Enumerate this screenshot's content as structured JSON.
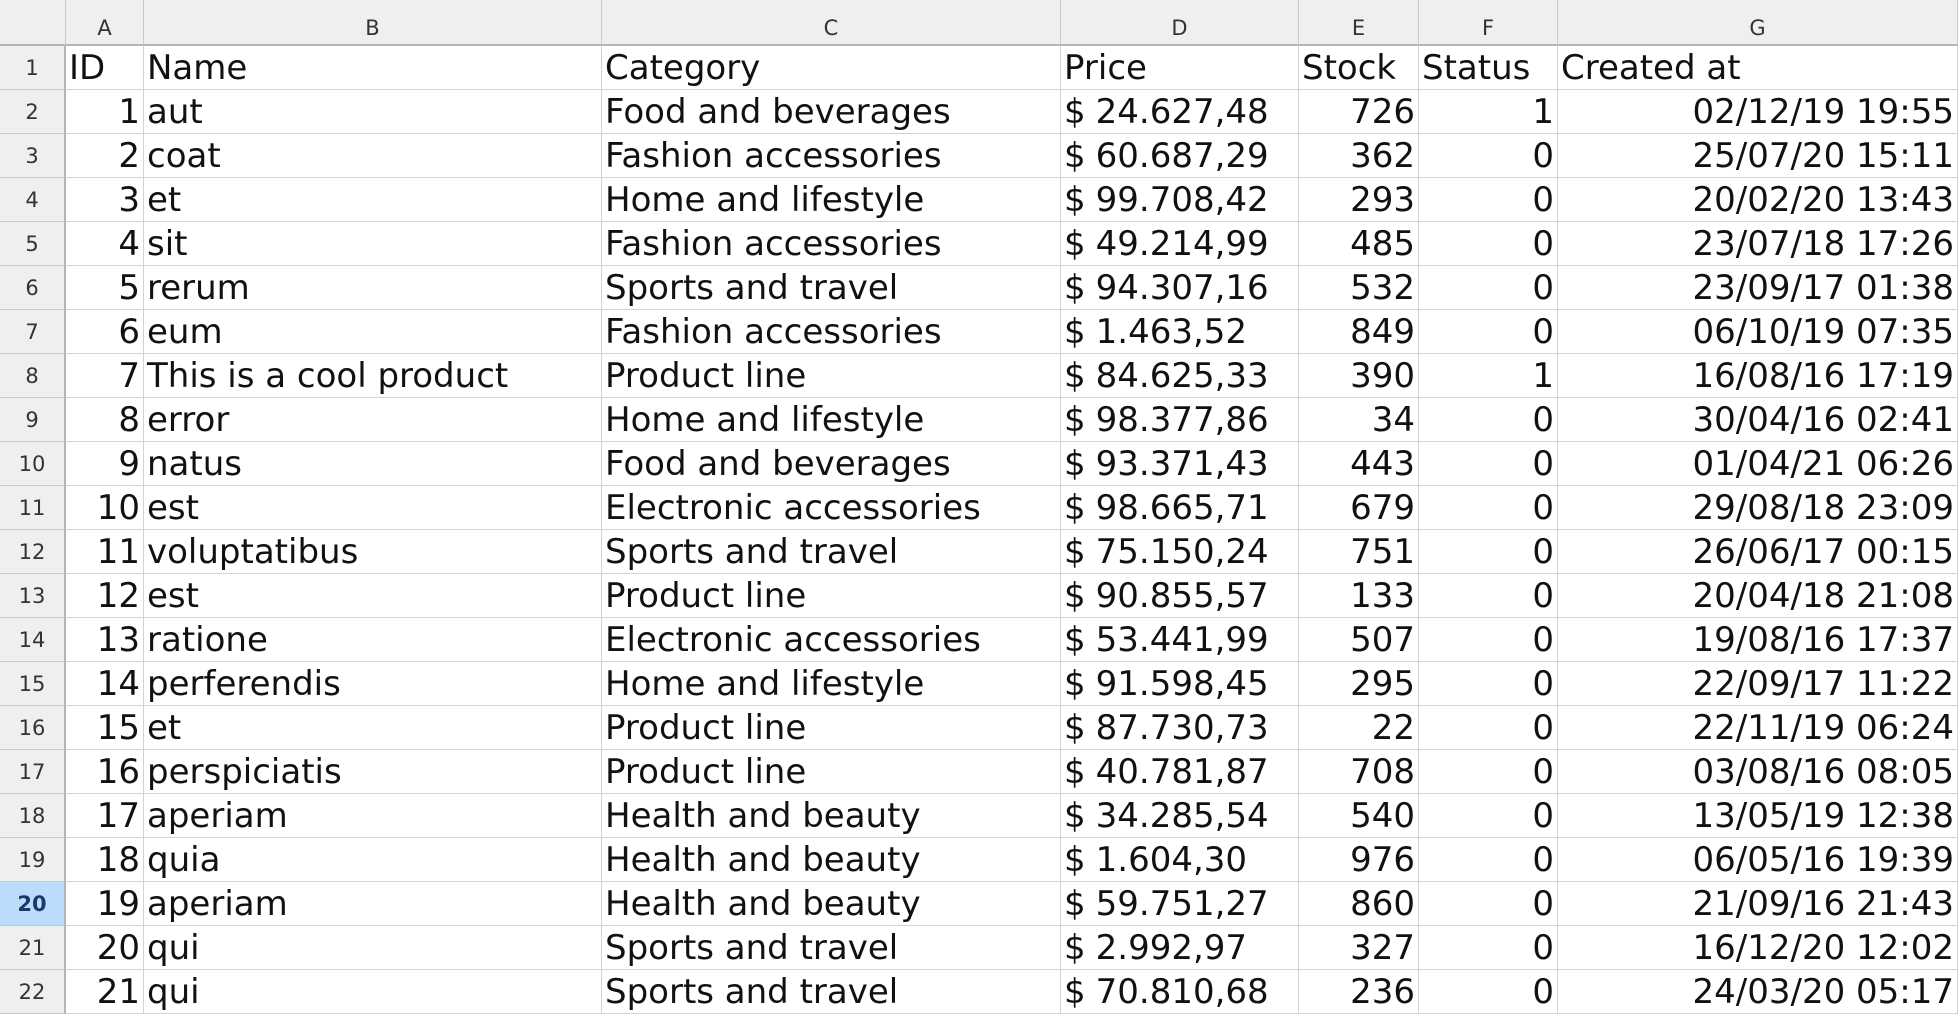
{
  "columns": [
    "A",
    "B",
    "C",
    "D",
    "E",
    "F",
    "G"
  ],
  "header_row": {
    "row_number": "1",
    "cells": [
      "ID",
      "Name",
      "Category",
      "Price",
      "Stock",
      "Status",
      "Created at"
    ]
  },
  "active_row": "20",
  "currency_symbol": "$",
  "rows": [
    {
      "row": "2",
      "id": "1",
      "name": "aut",
      "category": "Food and beverages",
      "price": "24.627,48",
      "stock": "726",
      "status": "1",
      "created": "02/12/19 19:55"
    },
    {
      "row": "3",
      "id": "2",
      "name": "coat",
      "category": "Fashion accessories",
      "price": "60.687,29",
      "stock": "362",
      "status": "0",
      "created": "25/07/20 15:11"
    },
    {
      "row": "4",
      "id": "3",
      "name": "et",
      "category": "Home and lifestyle",
      "price": "99.708,42",
      "stock": "293",
      "status": "0",
      "created": "20/02/20 13:43"
    },
    {
      "row": "5",
      "id": "4",
      "name": "sit",
      "category": "Fashion accessories",
      "price": "49.214,99",
      "stock": "485",
      "status": "0",
      "created": "23/07/18 17:26"
    },
    {
      "row": "6",
      "id": "5",
      "name": "rerum",
      "category": "Sports and travel",
      "price": "94.307,16",
      "stock": "532",
      "status": "0",
      "created": "23/09/17 01:38"
    },
    {
      "row": "7",
      "id": "6",
      "name": "eum",
      "category": "Fashion accessories",
      "price": "1.463,52",
      "stock": "849",
      "status": "0",
      "created": "06/10/19 07:35"
    },
    {
      "row": "8",
      "id": "7",
      "name": "This is a cool product",
      "category": "Product line",
      "price": "84.625,33",
      "stock": "390",
      "status": "1",
      "created": "16/08/16 17:19"
    },
    {
      "row": "9",
      "id": "8",
      "name": "error",
      "category": "Home and lifestyle",
      "price": "98.377,86",
      "stock": "34",
      "status": "0",
      "created": "30/04/16 02:41"
    },
    {
      "row": "10",
      "id": "9",
      "name": "natus",
      "category": "Food and beverages",
      "price": "93.371,43",
      "stock": "443",
      "status": "0",
      "created": "01/04/21 06:26"
    },
    {
      "row": "11",
      "id": "10",
      "name": "est",
      "category": "Electronic accessories",
      "price": "98.665,71",
      "stock": "679",
      "status": "0",
      "created": "29/08/18 23:09"
    },
    {
      "row": "12",
      "id": "11",
      "name": "voluptatibus",
      "category": "Sports and travel",
      "price": "75.150,24",
      "stock": "751",
      "status": "0",
      "created": "26/06/17 00:15"
    },
    {
      "row": "13",
      "id": "12",
      "name": "est",
      "category": "Product line",
      "price": "90.855,57",
      "stock": "133",
      "status": "0",
      "created": "20/04/18 21:08"
    },
    {
      "row": "14",
      "id": "13",
      "name": "ratione",
      "category": "Electronic accessories",
      "price": "53.441,99",
      "stock": "507",
      "status": "0",
      "created": "19/08/16 17:37"
    },
    {
      "row": "15",
      "id": "14",
      "name": "perferendis",
      "category": "Home and lifestyle",
      "price": "91.598,45",
      "stock": "295",
      "status": "0",
      "created": "22/09/17 11:22"
    },
    {
      "row": "16",
      "id": "15",
      "name": "et",
      "category": "Product line",
      "price": "87.730,73",
      "stock": "22",
      "status": "0",
      "created": "22/11/19 06:24"
    },
    {
      "row": "17",
      "id": "16",
      "name": "perspiciatis",
      "category": "Product line",
      "price": "40.781,87",
      "stock": "708",
      "status": "0",
      "created": "03/08/16 08:05"
    },
    {
      "row": "18",
      "id": "17",
      "name": "aperiam",
      "category": "Health and beauty",
      "price": "34.285,54",
      "stock": "540",
      "status": "0",
      "created": "13/05/19 12:38"
    },
    {
      "row": "19",
      "id": "18",
      "name": "quia",
      "category": "Health and beauty",
      "price": "1.604,30",
      "stock": "976",
      "status": "0",
      "created": "06/05/16 19:39"
    },
    {
      "row": "20",
      "id": "19",
      "name": "aperiam",
      "category": "Health and beauty",
      "price": "59.751,27",
      "stock": "860",
      "status": "0",
      "created": "21/09/16 21:43"
    },
    {
      "row": "21",
      "id": "20",
      "name": "qui",
      "category": "Sports and travel",
      "price": "2.992,97",
      "stock": "327",
      "status": "0",
      "created": "16/12/20 12:02"
    },
    {
      "row": "22",
      "id": "21",
      "name": "qui",
      "category": "Sports and travel",
      "price": "70.810,68",
      "stock": "236",
      "status": "0",
      "created": "24/03/20 05:17"
    }
  ]
}
